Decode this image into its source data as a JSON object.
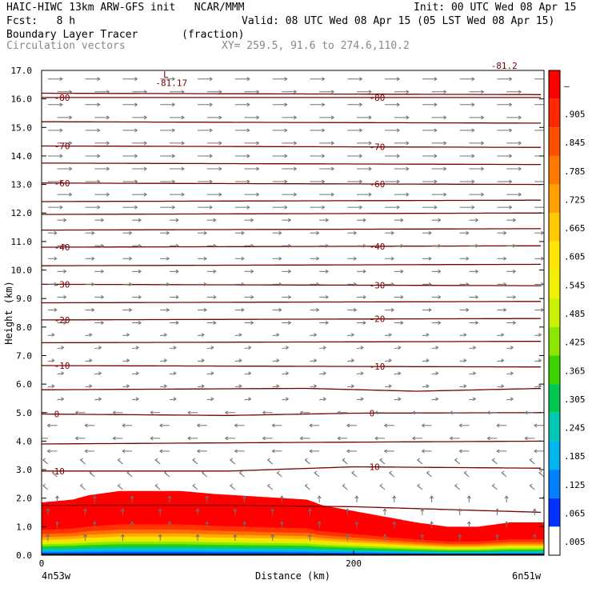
{
  "header": {
    "model_line": "HAIC-HIWC 13km ARW-GFS init   NCAR/MMM",
    "init_line": "Init: 00 UTC Wed 08 Apr 15",
    "fcst_line": "Fcst:   8 h",
    "valid_line": "Valid: 08 UTC Wed 08 Apr 15 (05 LST Wed 08 Apr 15)",
    "field_line": "Boundary Layer Tracer       (fraction)",
    "vector_line": "Circulation vectors",
    "xy_line": "XY= 259.5, 91.6 to 274.6,110.2"
  },
  "chart_data": {
    "type": "heatmap",
    "xlabel": "Distance (km)",
    "ylabel": "Height (km)",
    "x_start_label": "4n53w",
    "x_end_label": "6n51w",
    "xlim": [
      0,
      322
    ],
    "ylim": [
      0,
      17
    ],
    "x_ticks": [
      0,
      200
    ],
    "y_ticks": [
      "0.0",
      "1.0",
      "2.0",
      "3.0",
      "4.0",
      "5.0",
      "6.0",
      "7.0",
      "8.0",
      "9.0",
      "10.0",
      "11.0",
      "12.0",
      "13.0",
      "14.0",
      "15.0",
      "16.0",
      "17.0"
    ],
    "colorbar": {
      "labels": [
        "–",
        ".905",
        ".845",
        ".785",
        ".725",
        ".665",
        ".605",
        ".545",
        ".485",
        ".425",
        ".365",
        ".305",
        ".245",
        ".185",
        ".125",
        ".065",
        ".005"
      ],
      "colors": [
        "#ff0000",
        "#ff2800",
        "#ff5000",
        "#ff7800",
        "#ffa000",
        "#ffc800",
        "#ffe600",
        "#f0f000",
        "#c8f000",
        "#8ce600",
        "#3cd200",
        "#00c850",
        "#00c8b4",
        "#00b4f0",
        "#0082ff",
        "#0032ff",
        "#ffffff"
      ]
    },
    "tracer_top_profile": {
      "x": [
        0,
        20,
        30,
        50,
        90,
        110,
        140,
        170,
        180,
        200,
        220,
        240,
        260,
        280,
        300,
        322
      ],
      "top_km": [
        1.85,
        1.95,
        2.1,
        2.25,
        2.25,
        2.15,
        2.05,
        1.95,
        1.75,
        1.55,
        1.35,
        1.15,
        1.0,
        1.0,
        1.15,
        1.15
      ]
    },
    "temperature_contours": [
      {
        "label": "10",
        "x": [
          0,
          120,
          200,
          322
        ],
        "y": [
          2.95,
          2.95,
          3.1,
          3.05
        ]
      },
      {
        "label": "0",
        "x": [
          0,
          120,
          200,
          322
        ],
        "y": [
          4.95,
          4.9,
          4.98,
          5.0
        ]
      },
      {
        "label": "-10",
        "x": [
          0,
          322
        ],
        "y": [
          6.65,
          6.6
        ]
      },
      {
        "label": "-20",
        "x": [
          0,
          322
        ],
        "y": [
          8.25,
          8.3
        ]
      },
      {
        "label": "-30",
        "x": [
          0,
          322
        ],
        "y": [
          9.5,
          9.45
        ]
      },
      {
        "label": "-40",
        "x": [
          0,
          322
        ],
        "y": [
          10.8,
          10.85
        ]
      },
      {
        "label": "-60",
        "x": [
          0,
          322
        ],
        "y": [
          13.05,
          13.0
        ]
      },
      {
        "label": "-70",
        "x": [
          0,
          322
        ],
        "y": [
          14.35,
          14.3
        ]
      },
      {
        "label": "-80",
        "x": [
          0,
          322
        ],
        "y": [
          16.05,
          16.05
        ]
      }
    ],
    "unlabeled_contours": [
      {
        "x": [
          0,
          120,
          200,
          322
        ],
        "y": [
          1.75,
          1.75,
          1.7,
          1.5
        ]
      },
      {
        "x": [
          0,
          150,
          322
        ],
        "y": [
          3.9,
          3.95,
          4.0
        ]
      },
      {
        "x": [
          0,
          170,
          240,
          322
        ],
        "y": [
          5.8,
          5.85,
          5.75,
          5.85
        ]
      },
      {
        "x": [
          0,
          322
        ],
        "y": [
          7.45,
          7.5
        ]
      },
      {
        "x": [
          0,
          322
        ],
        "y": [
          8.85,
          8.9
        ]
      },
      {
        "x": [
          0,
          322
        ],
        "y": [
          10.15,
          10.2
        ]
      },
      {
        "x": [
          0,
          322
        ],
        "y": [
          11.4,
          11.45
        ]
      },
      {
        "x": [
          0,
          322
        ],
        "y": [
          11.95,
          12.0
        ]
      },
      {
        "x": [
          0,
          322
        ],
        "y": [
          12.4,
          12.45
        ]
      },
      {
        "x": [
          0,
          322
        ],
        "y": [
          13.75,
          13.7
        ]
      },
      {
        "x": [
          0,
          322
        ],
        "y": [
          15.2,
          15.15
        ]
      },
      {
        "x": [
          0,
          322
        ],
        "y": [
          16.2,
          16.15
        ]
      }
    ],
    "annotations": [
      {
        "text": "L",
        "x": 78,
        "y": 16.75
      },
      {
        "text": "-81.17",
        "x": 73,
        "y": 16.45
      },
      {
        "text": "-81.2",
        "x": 288,
        "y": 17.05
      }
    ]
  }
}
